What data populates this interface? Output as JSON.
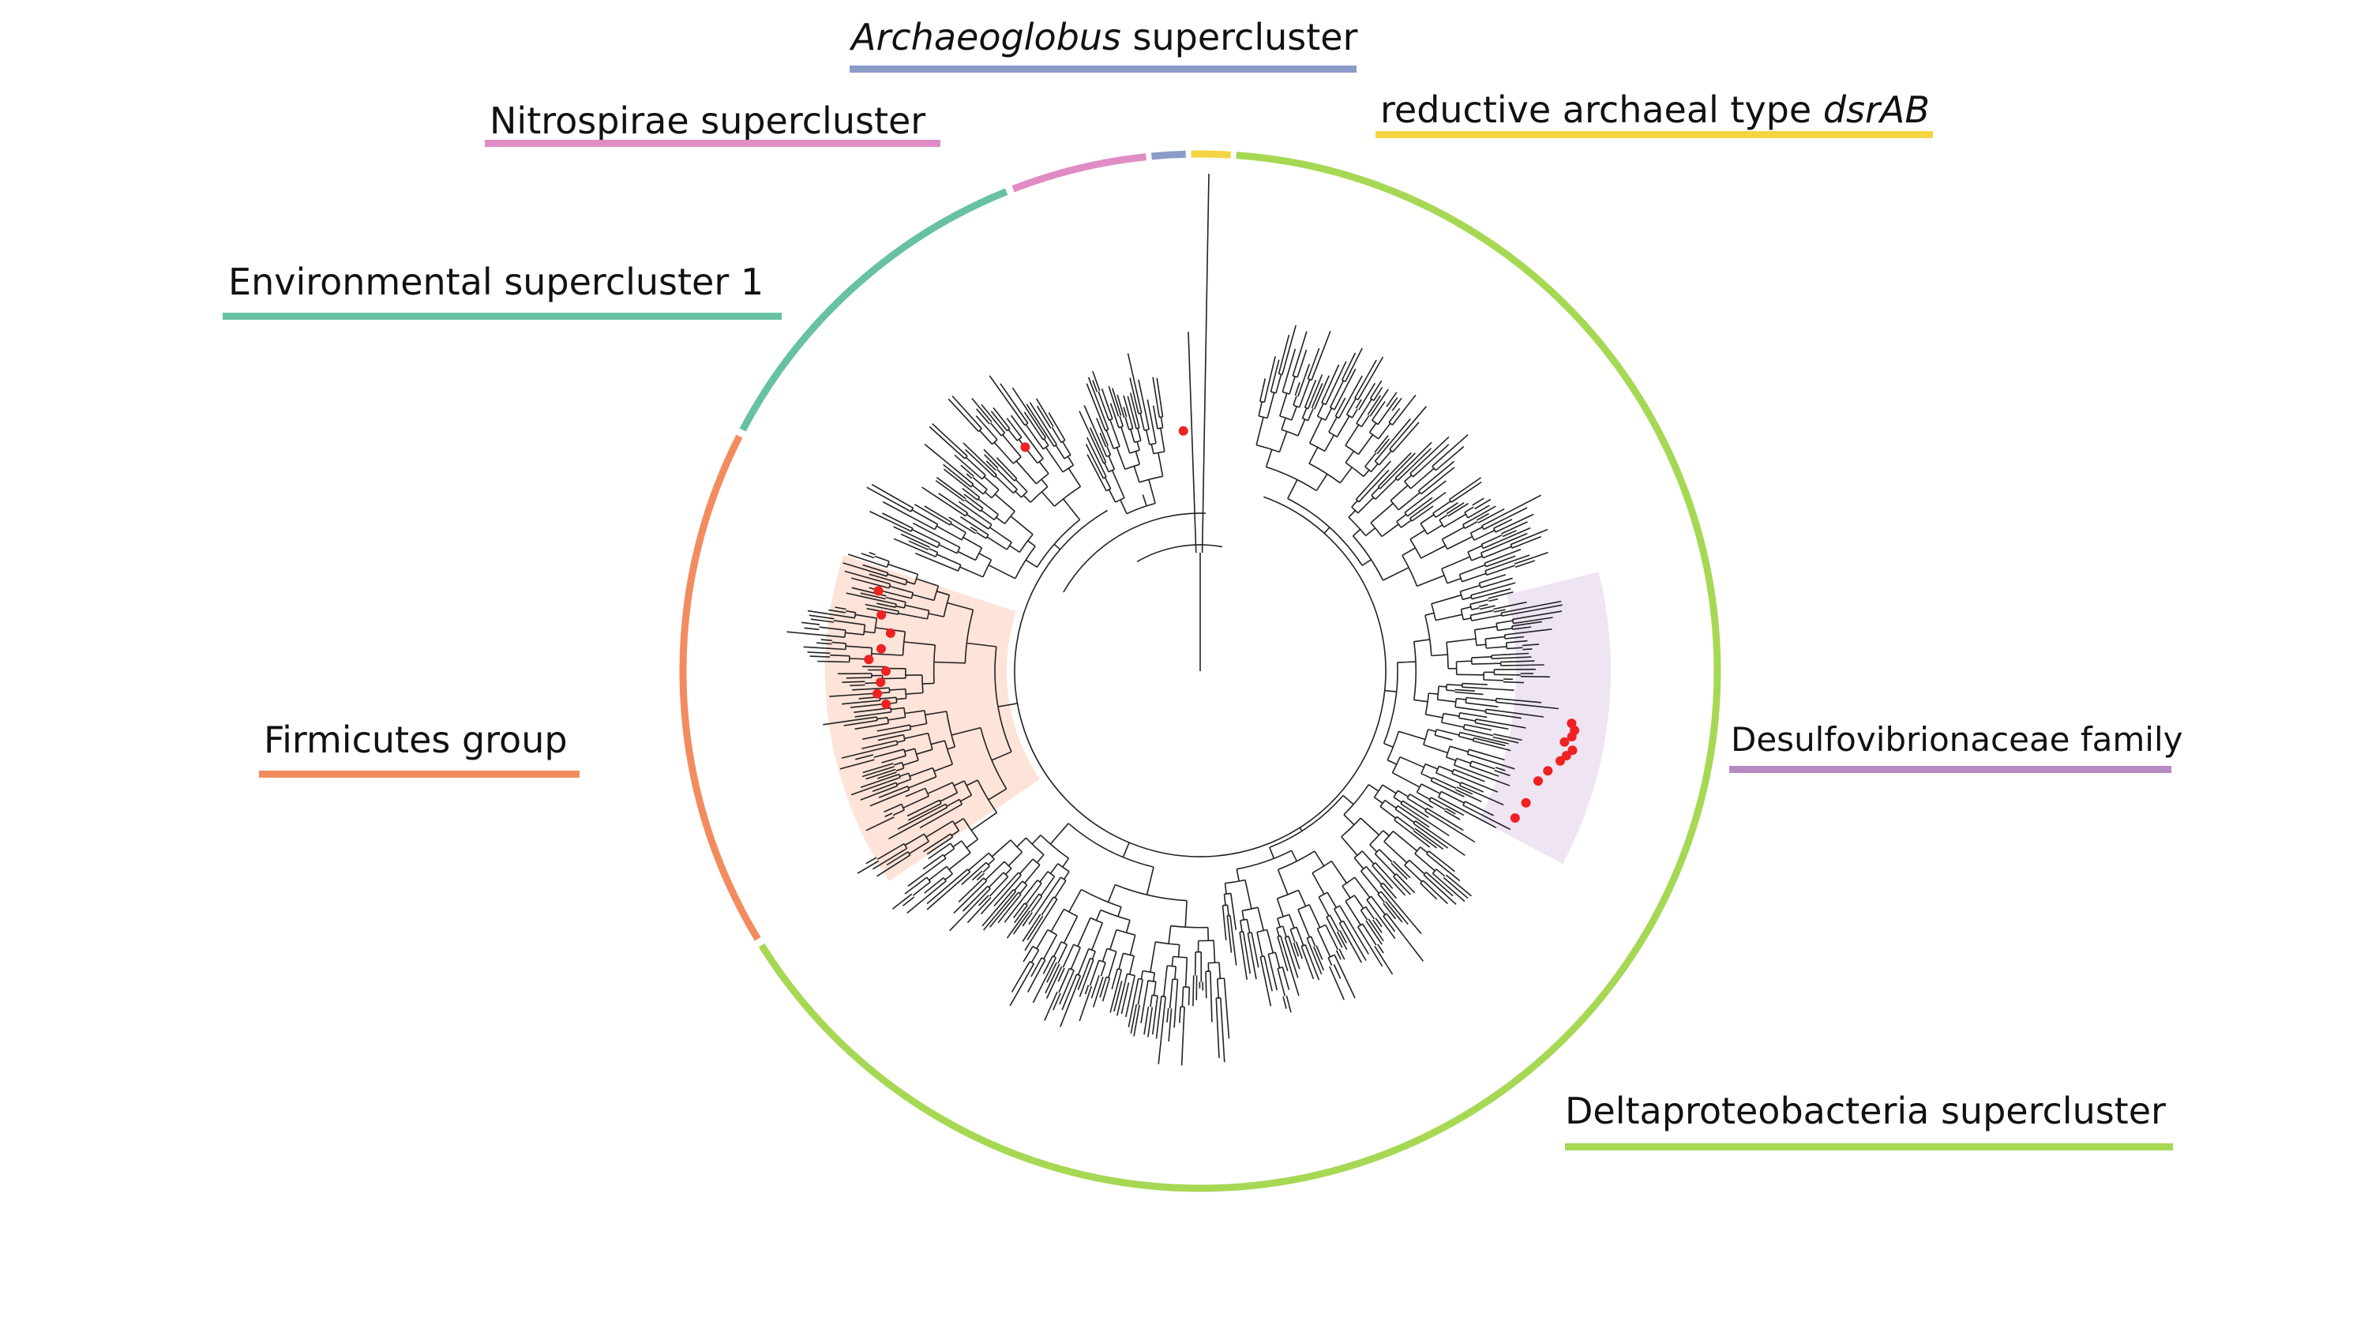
{
  "labels": {
    "archaeoglobus_italic": "Archaeoglobus",
    "archaeoglobus_rest": " supercluster",
    "nitrospirae": "Nitrospirae supercluster",
    "reductive_rest": "reductive archaeal type ",
    "reductive_italic": "dsrAB",
    "environmental": "Environmental supercluster 1",
    "firmicutes": "Firmicutes group",
    "desulfovibrionaceae": "Desulfovibrionaceae family",
    "deltaproteobacteria": "Deltaproteobacteria supercluster"
  },
  "colors": {
    "archaeoglobus": "#8c9cc8",
    "nitrospirae": "#e08cc4",
    "reductive": "#f5d442",
    "environmental": "#66c2a0",
    "firmicutes": "#f28c5f",
    "desulfovibrionaceae": "#b889c2",
    "deltaproteobacteria": "#a6d854",
    "firmicutes_highlight": "#fde3d8",
    "desulfo_highlight": "#eee4f2",
    "tree_line": "#222222",
    "marker": "#ee2222"
  },
  "tree": {
    "type": "circular phylogenetic tree",
    "highlighted_clades": [
      "Firmicutes group",
      "Desulfovibrionaceae family"
    ],
    "marker_description": "red dots on selected leaves"
  }
}
